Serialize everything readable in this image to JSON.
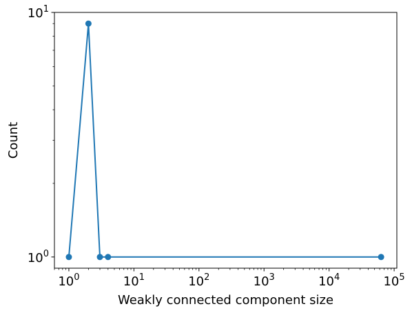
{
  "chart_data": {
    "type": "line",
    "xlabel": "Weakly connected component size",
    "ylabel": "Count",
    "x_scale": "log",
    "y_scale": "log",
    "xlim": [
      0.6,
      110000
    ],
    "ylim": [
      0.9,
      10
    ],
    "x_ticks": [
      {
        "value": 1,
        "base": "10",
        "exp": "0"
      },
      {
        "value": 10,
        "base": "10",
        "exp": "1"
      },
      {
        "value": 100,
        "base": "10",
        "exp": "2"
      },
      {
        "value": 1000,
        "base": "10",
        "exp": "3"
      },
      {
        "value": 10000,
        "base": "10",
        "exp": "4"
      },
      {
        "value": 100000,
        "base": "10",
        "exp": "5"
      }
    ],
    "y_ticks": [
      {
        "value": 1,
        "base": "10",
        "exp": "0"
      },
      {
        "value": 10,
        "base": "10",
        "exp": "1"
      }
    ],
    "series": [
      {
        "color": "#1f77b4",
        "marker": "circle",
        "points": [
          {
            "x": 1,
            "y": 1
          },
          {
            "x": 2,
            "y": 9
          },
          {
            "x": 3,
            "y": 1
          },
          {
            "x": 4,
            "y": 1
          },
          {
            "x": 63000,
            "y": 1
          }
        ]
      }
    ],
    "grid": false,
    "legend": "none"
  }
}
